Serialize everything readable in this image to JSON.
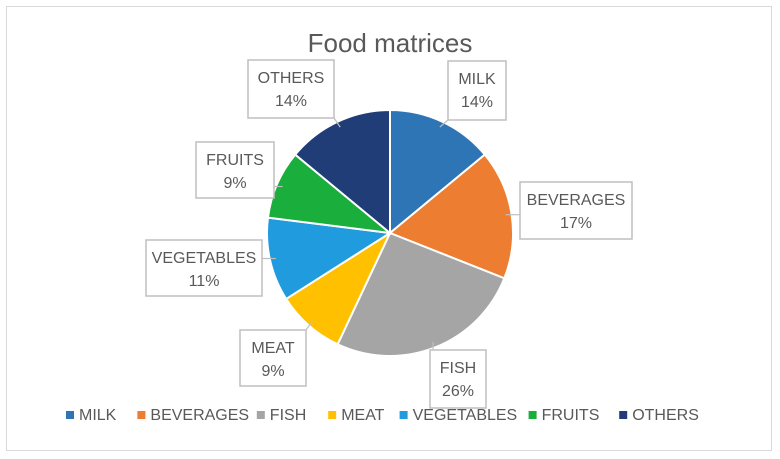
{
  "chart_data": {
    "type": "pie",
    "title": "Food matrices",
    "legend_position": "bottom",
    "slices": [
      {
        "label": "MILK",
        "value": 14,
        "value_label": "14%",
        "color": "#2E75B6"
      },
      {
        "label": "BEVERAGES",
        "value": 17,
        "value_label": "17%",
        "color": "#ED7D31"
      },
      {
        "label": "FISH",
        "value": 26,
        "value_label": "26%",
        "color": "#A5A5A5"
      },
      {
        "label": "MEAT",
        "value": 9,
        "value_label": "9%",
        "color": "#FFC000"
      },
      {
        "label": "VEGETABLES",
        "value": 11,
        "value_label": "11%",
        "color": "#1F9BDE"
      },
      {
        "label": "FRUITS",
        "value": 9,
        "value_label": "9%",
        "color": "#1AAE3C"
      },
      {
        "label": "OTHERS",
        "value": 14,
        "value_label": "14%",
        "color": "#203D78"
      }
    ]
  }
}
